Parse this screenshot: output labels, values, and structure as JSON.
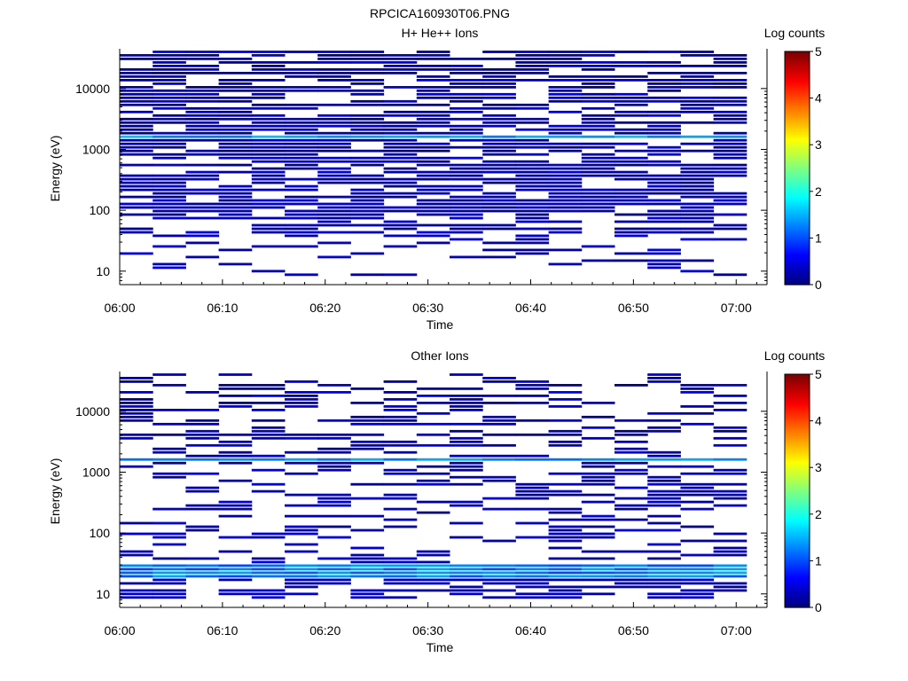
{
  "page_title": "RPCICA160930T06.PNG",
  "chart_data": [
    {
      "type": "heatmap",
      "title": "H+ He++ Ions",
      "xlabel": "Time",
      "ylabel": "Energy (eV)",
      "x_ticks": [
        "06:00",
        "06:10",
        "06:20",
        "06:30",
        "06:40",
        "06:50",
        "07:00"
      ],
      "x_range": [
        "06:00",
        "07:03"
      ],
      "y_scale": "log",
      "y_ticks": [
        10,
        100,
        1000,
        10000
      ],
      "y_range": [
        6,
        45000
      ],
      "colorbar": {
        "label": "Log counts",
        "ticks": [
          0,
          1,
          2,
          3,
          4,
          5
        ],
        "range": [
          0,
          5
        ],
        "colormap": "jet"
      },
      "background_band": {
        "energy_ev": 1600,
        "log_counts": 1.4
      },
      "density": 0.7
    },
    {
      "type": "heatmap",
      "title": "Other Ions",
      "xlabel": "Time",
      "ylabel": "Energy (eV)",
      "x_ticks": [
        "06:00",
        "06:10",
        "06:20",
        "06:30",
        "06:40",
        "06:50",
        "07:00"
      ],
      "x_range": [
        "06:00",
        "07:03"
      ],
      "y_scale": "log",
      "y_ticks": [
        10,
        100,
        1000,
        10000
      ],
      "y_range": [
        6,
        45000
      ],
      "colorbar": {
        "label": "Log counts",
        "ticks": [
          0,
          1,
          2,
          3,
          4,
          5
        ],
        "range": [
          0,
          5
        ],
        "colormap": "jet"
      },
      "background_band": {
        "energy_ev": 1600,
        "log_counts": 1.3
      },
      "low_energy_band": {
        "energy_ev_range": [
          18,
          30
        ],
        "log_counts": 1.1
      },
      "density": 0.35
    }
  ]
}
